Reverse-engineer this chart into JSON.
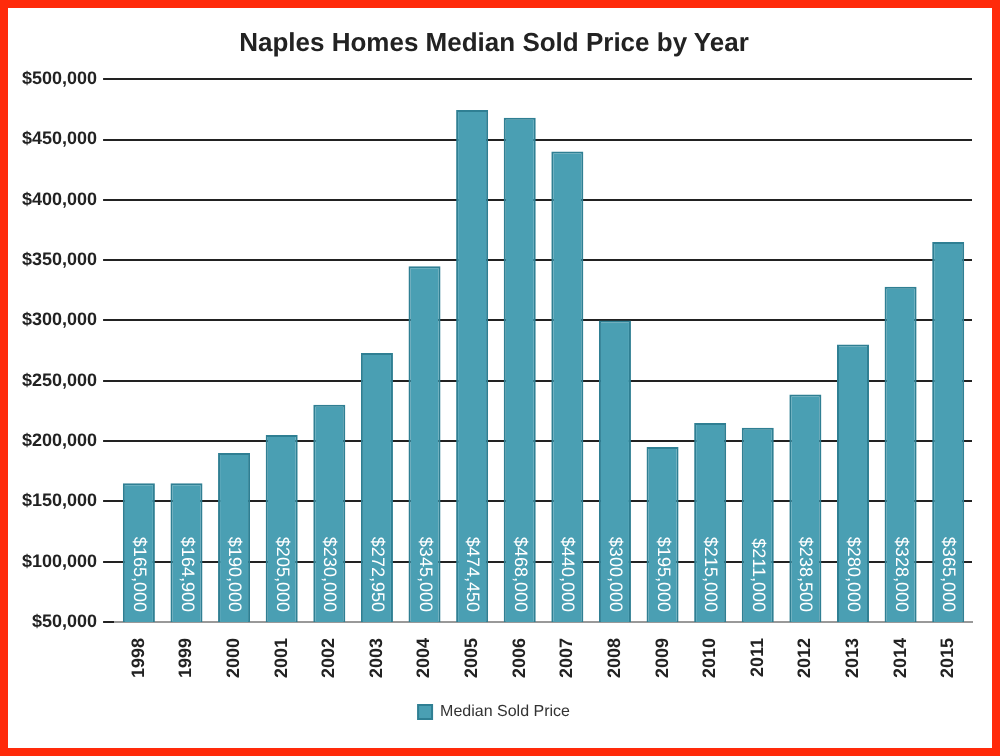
{
  "chart_data": {
    "type": "bar",
    "title": "Naples Homes Median Sold Price by Year",
    "categories": [
      "1998",
      "1999",
      "2000",
      "2001",
      "2002",
      "2003",
      "2004",
      "2005",
      "2006",
      "2007",
      "2008",
      "2009",
      "2010",
      "2011",
      "2012",
      "2013",
      "2014",
      "2015"
    ],
    "series": [
      {
        "name": "Median Sold Price",
        "color": "#4a9fb3",
        "values": [
          165000,
          164900,
          190000,
          205000,
          230000,
          272950,
          345000,
          474450,
          468000,
          440000,
          300000,
          195000,
          215000,
          211000,
          238500,
          280000,
          328000,
          365000
        ],
        "value_labels": [
          "$165,000",
          "$164,900",
          "$190,000",
          "$205,000",
          "$230,000",
          "$272,950",
          "$345,000",
          "$474,450",
          "$468,000",
          "$440,000",
          "$300,000",
          "$195,000",
          "$215,000",
          "$211,000",
          "$238,500",
          "$280,000",
          "$328,000",
          "$365,000"
        ]
      }
    ],
    "ylim": [
      50000,
      500000
    ],
    "yticks": [
      {
        "value": 50000,
        "label": "$50,000"
      },
      {
        "value": 100000,
        "label": "$100,000"
      },
      {
        "value": 150000,
        "label": "$150,000"
      },
      {
        "value": 200000,
        "label": "$200,000"
      },
      {
        "value": 250000,
        "label": "$250,000"
      },
      {
        "value": 300000,
        "label": "$300,000"
      },
      {
        "value": 350000,
        "label": "$350,000"
      },
      {
        "value": 400000,
        "label": "$400,000"
      },
      {
        "value": 450000,
        "label": "$450,000"
      },
      {
        "value": 500000,
        "label": "$500,000"
      }
    ],
    "grid": "y",
    "legend": "bottom"
  }
}
